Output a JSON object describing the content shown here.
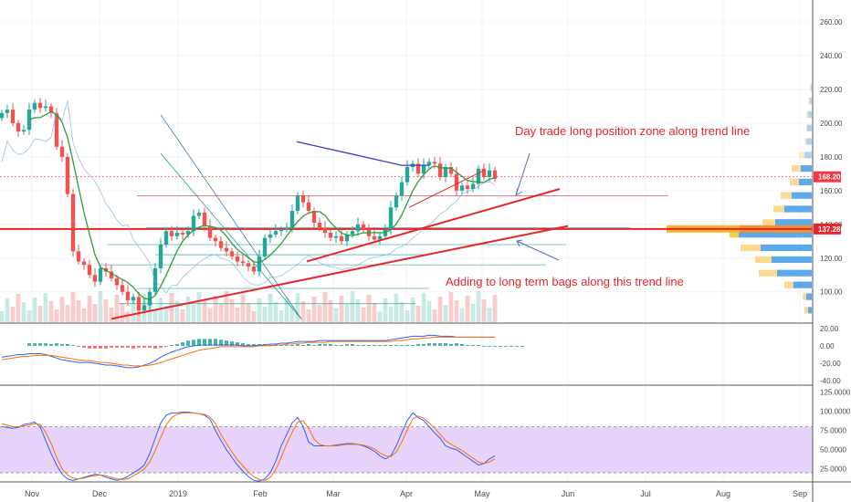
{
  "chart_data": [
    {
      "panel": "price",
      "type": "candlestick",
      "y_ticks": [
        "260.00",
        "240.00",
        "220.00",
        "200.00",
        "180.00",
        "160.00",
        "140.00",
        "120.00",
        "100.00"
      ],
      "y_tick_values": [
        260,
        240,
        220,
        200,
        180,
        160,
        140,
        120,
        100
      ],
      "ylim": [
        82,
        273
      ],
      "x_ticks": [
        "Nov",
        "Dec",
        "2019",
        "Feb",
        "Mar",
        "Apr",
        "May",
        "Jun",
        "Jul",
        "Aug",
        "Sep"
      ],
      "price_labels": [
        {
          "text": "168.20",
          "value": 168.2,
          "color": "#f23645"
        },
        {
          "text": "137.28",
          "value": 137.28,
          "color": "#e8242b"
        }
      ],
      "annotations": [
        "Day trade long position zone along trend line",
        "Adding to long term bags along this trend line"
      ],
      "closes": [
        206,
        208,
        200,
        195,
        196,
        208,
        212,
        209,
        210,
        206,
        186,
        180,
        158,
        124,
        118,
        116,
        110,
        106,
        114,
        112,
        108,
        104,
        100,
        95,
        97,
        89,
        92,
        100,
        114,
        128,
        136,
        133,
        135,
        134,
        136,
        145,
        147,
        139,
        132,
        130,
        126,
        124,
        121,
        118,
        117,
        115,
        112,
        121,
        132,
        134,
        136,
        137,
        138,
        148,
        157,
        153,
        148,
        141,
        138,
        135,
        132,
        133,
        130,
        134,
        136,
        140,
        137,
        133,
        131,
        133,
        137,
        150,
        157,
        165,
        174,
        176,
        170,
        175,
        177,
        176,
        168,
        174,
        170,
        160,
        163,
        161,
        164,
        173,
        168,
        172,
        167
      ],
      "ma_ratios": [
        0.86,
        0.91,
        0.92,
        0.93,
        0.93,
        0.89,
        0.9,
        0.91,
        0.9,
        0.93,
        1.11,
        1.12,
        1.35,
        1.52,
        1.52,
        1.49,
        1.54,
        1.56,
        1.4,
        1.36,
        1.37,
        1.37,
        1.39,
        1.47,
        1.35,
        1.42,
        1.33,
        1.17,
        0.93,
        0.81,
        0.73,
        0.78,
        0.77,
        0.81,
        0.82,
        0.79,
        0.8,
        0.86,
        0.92,
        0.94,
        0.95,
        0.96,
        0.97,
        0.96,
        0.93,
        0.92,
        0.93,
        0.86,
        0.8,
        0.81,
        0.8,
        0.8,
        0.81,
        0.77,
        0.74,
        0.78,
        0.82,
        0.85,
        0.85,
        0.86,
        0.87,
        0.86,
        0.87,
        0.85,
        0.84,
        0.83,
        0.86,
        0.9,
        0.92,
        0.91,
        0.89,
        0.82,
        0.8,
        0.77,
        0.74,
        0.75,
        0.79,
        0.79,
        0.79,
        0.81,
        0.87,
        0.85,
        0.89,
        0.96,
        0.97,
        0.99,
        0.98,
        0.94,
        0.98,
        0.96,
        0.98
      ],
      "volume_profile_bands": [
        {
          "price": 221,
          "a": 2,
          "b": 1
        },
        {
          "price": 213,
          "a": 4,
          "b": 2
        },
        {
          "price": 205,
          "a": 6,
          "b": 4
        },
        {
          "price": 197,
          "a": 6,
          "b": 5
        },
        {
          "price": 189,
          "a": 8,
          "b": 6
        },
        {
          "price": 181,
          "a": 14,
          "b": 8
        },
        {
          "price": 173,
          "a": 22,
          "b": 12
        },
        {
          "price": 165,
          "a": 24,
          "b": 14
        },
        {
          "price": 157,
          "a": 34,
          "b": 22
        },
        {
          "price": 149,
          "a": 42,
          "b": 30
        },
        {
          "price": 141,
          "a": 54,
          "b": 40
        },
        {
          "price": 134,
          "a": 90,
          "b": 80
        },
        {
          "price": 126,
          "a": 78,
          "b": 56
        },
        {
          "price": 119,
          "a": 62,
          "b": 44
        },
        {
          "price": 111,
          "a": 58,
          "b": 38
        },
        {
          "price": 104,
          "a": 30,
          "b": 20
        },
        {
          "price": 97,
          "a": 10,
          "b": 6
        },
        {
          "price": 89,
          "a": 8,
          "b": 4
        }
      ]
    },
    {
      "panel": "macd",
      "type": "line",
      "y_ticks": [
        "20.00",
        "0.00",
        "-20.00",
        "-40.00"
      ],
      "y_tick_values": [
        20,
        0,
        -20,
        -40
      ],
      "ylim": [
        -44,
        25
      ],
      "macd": [
        -13,
        -12,
        -11,
        -10,
        -10,
        -9,
        -9,
        -9,
        -10,
        -12,
        -14,
        -16,
        -17,
        -18,
        -19,
        -19,
        -19,
        -20,
        -21,
        -22,
        -22,
        -23,
        -24,
        -25,
        -25,
        -24,
        -22,
        -20,
        -17,
        -13,
        -10,
        -7,
        -5,
        -3,
        -1,
        0,
        1,
        1,
        1,
        1,
        1,
        1,
        1,
        1,
        0,
        0,
        0,
        1,
        1,
        2,
        2,
        3,
        3,
        4,
        5,
        5,
        5,
        5,
        6,
        6,
        6,
        6,
        6,
        6,
        6,
        6,
        6,
        6,
        6,
        6,
        6,
        7,
        8,
        9,
        10,
        11,
        11,
        11,
        12,
        12,
        11,
        11,
        11,
        10,
        10,
        10,
        10,
        10,
        10,
        10,
        10
      ],
      "signal": [
        -16,
        -15,
        -14,
        -13,
        -12,
        -12,
        -11,
        -11,
        -11,
        -11,
        -12,
        -13,
        -14,
        -15,
        -16,
        -17,
        -17,
        -18,
        -19,
        -19,
        -20,
        -21,
        -22,
        -22,
        -23,
        -23,
        -23,
        -22,
        -21,
        -19,
        -17,
        -15,
        -13,
        -11,
        -9,
        -7,
        -5,
        -4,
        -3,
        -2,
        -1,
        -1,
        -1,
        -1,
        -1,
        -1,
        -1,
        0,
        0,
        0,
        1,
        1,
        2,
        2,
        3,
        3,
        4,
        4,
        4,
        4,
        5,
        5,
        5,
        5,
        5,
        5,
        5,
        5,
        5,
        5,
        5,
        5,
        6,
        6,
        7,
        8,
        8,
        9,
        9,
        10,
        10,
        10,
        10,
        10,
        10,
        10,
        10,
        10,
        10,
        10,
        10
      ]
    },
    {
      "panel": "stochastic",
      "type": "line",
      "y_ticks": [
        "125.0000",
        "100.0000",
        "75.0000",
        "50.0000",
        "25.0000"
      ],
      "y_tick_values": [
        125,
        100,
        75,
        50,
        25
      ],
      "ylim": [
        8,
        133
      ],
      "band": [
        80,
        20
      ],
      "k": [
        80,
        79,
        78,
        79,
        83,
        84,
        86,
        80,
        62,
        45,
        30,
        18,
        12,
        10,
        12,
        14,
        16,
        18,
        17,
        14,
        12,
        10,
        12,
        15,
        20,
        24,
        30,
        45,
        65,
        85,
        95,
        98,
        98,
        99,
        99,
        98,
        97,
        95,
        90,
        75,
        62,
        50,
        40,
        30,
        22,
        15,
        10,
        9,
        12,
        20,
        35,
        55,
        70,
        85,
        92,
        80,
        60,
        55,
        55,
        55,
        55,
        56,
        57,
        58,
        58,
        57,
        55,
        52,
        48,
        42,
        38,
        42,
        55,
        72,
        88,
        98,
        92,
        88,
        80,
        72,
        65,
        55,
        52,
        50,
        45,
        40,
        35,
        30,
        32,
        38,
        42
      ],
      "d": [
        84,
        82,
        80,
        80,
        81,
        82,
        84,
        83,
        73,
        58,
        40,
        25,
        17,
        13,
        12,
        13,
        15,
        16,
        17,
        16,
        14,
        12,
        11,
        12,
        16,
        20,
        25,
        34,
        49,
        66,
        82,
        92,
        96,
        98,
        98,
        98,
        97,
        96,
        93,
        84,
        70,
        58,
        47,
        37,
        29,
        21,
        15,
        11,
        10,
        14,
        24,
        40,
        58,
        73,
        86,
        88,
        78,
        64,
        57,
        55,
        55,
        55,
        56,
        57,
        57,
        57,
        56,
        54,
        51,
        46,
        42,
        41,
        47,
        60,
        76,
        90,
        94,
        91,
        85,
        78,
        70,
        62,
        57,
        53,
        49,
        44,
        39,
        34,
        32,
        34,
        38
      ]
    }
  ]
}
